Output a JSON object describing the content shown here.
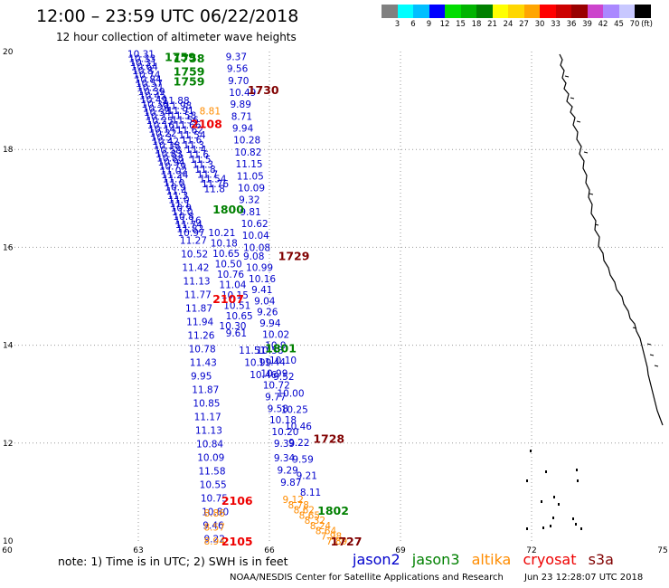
{
  "header": {
    "title": "12:00 – 23:59 UTC 06/22/2018",
    "subtitle": "12 hour collection of altimeter wave heights"
  },
  "legend": {
    "colors": [
      "#808080",
      "#00ffff",
      "#00bfff",
      "#0000ff",
      "#00dd00",
      "#00b400",
      "#008000",
      "#ffff00",
      "#ffd700",
      "#ffa500",
      "#ff0000",
      "#cc0000",
      "#990000",
      "#cc44cc",
      "#aa88ff",
      "#c8c8ff",
      "#000000"
    ],
    "labels": [
      "3",
      "6",
      "9",
      "12",
      "15",
      "18",
      "21",
      "24",
      "27",
      "30",
      "33",
      "36",
      "39",
      "42",
      "45",
      "70",
      "(ft)"
    ]
  },
  "map_data": {
    "lon_range": [
      60,
      75
    ],
    "lat_range": [
      10,
      20
    ],
    "lon_ticks": [
      "60",
      "63",
      "66",
      "69",
      "72",
      "75"
    ],
    "lat_ticks": [
      "20",
      "18",
      "16",
      "14",
      "12",
      "10"
    ],
    "track_colors": {
      "jason2": "#0000cc",
      "jason3": "#008000",
      "altika": "#ff8c00",
      "cryosat": "#ee0000",
      "s3a": "#800000"
    },
    "pass_times": [
      {
        "text": "1759",
        "lon": 63.6,
        "lat": 19.9,
        "sat": "jason3"
      },
      {
        "text": "1758",
        "lon": 63.8,
        "lat": 19.87,
        "sat": "jason3"
      },
      {
        "text": "1759",
        "lon": 63.8,
        "lat": 19.6,
        "sat": "jason3"
      },
      {
        "text": "1759",
        "lon": 63.8,
        "lat": 19.4,
        "sat": "jason3"
      },
      {
        "text": "1730",
        "lon": 65.5,
        "lat": 19.22,
        "sat": "s3a"
      },
      {
        "text": "2108",
        "lon": 64.2,
        "lat": 18.53,
        "sat": "cryosat"
      },
      {
        "text": "1800",
        "lon": 64.7,
        "lat": 16.78,
        "sat": "jason3"
      },
      {
        "text": "1729",
        "lon": 66.2,
        "lat": 15.83,
        "sat": "s3a"
      },
      {
        "text": "2107",
        "lon": 64.7,
        "lat": 14.95,
        "sat": "cryosat"
      },
      {
        "text": "1801",
        "lon": 65.9,
        "lat": 13.95,
        "sat": "jason3"
      },
      {
        "text": "1728",
        "lon": 67.0,
        "lat": 12.1,
        "sat": "s3a"
      },
      {
        "text": "2106",
        "lon": 64.9,
        "lat": 10.83,
        "sat": "cryosat"
      },
      {
        "text": "1802",
        "lon": 67.1,
        "lat": 10.63,
        "sat": "jason3"
      },
      {
        "text": "2105",
        "lon": 64.9,
        "lat": 10.0,
        "sat": "cryosat"
      },
      {
        "text": "1727",
        "lon": 67.4,
        "lat": 10.0,
        "sat": "s3a"
      }
    ],
    "tracks": [
      {
        "sat": "jason2",
        "lon_top": 62.75,
        "lat_top": 19.95,
        "lon_bot": 63.9,
        "lat_bot": 16.3,
        "values": [
          "10.31",
          "10.33",
          "10.31",
          "10.64",
          "10.8",
          "10.74",
          "10.84",
          "10.57",
          "10.21",
          "10.39",
          "10.45",
          "10.49",
          "10.36",
          "10.26",
          "10.34",
          "10.2",
          "10.25",
          "10.16",
          "10.14",
          "10.22",
          "10.3",
          "10.42",
          "10.38",
          "10.58",
          "10.83",
          "10.88",
          "10.94",
          "10.79",
          "11.02",
          "11.24",
          "11.1",
          "11.0",
          "10.9",
          "11.4",
          "11.3",
          "11.0",
          "11.1",
          "10.9",
          "11.0",
          "10.8",
          "11.16",
          "11.74",
          "11.82",
          "10.97"
        ]
      },
      {
        "sat": "jason2",
        "lon_top": 63.55,
        "lat_top": 19.0,
        "lon_bot": 64.5,
        "lat_bot": 17.2,
        "values": [
          "11.88",
          "11.98",
          "11.91",
          "11.58",
          "11.56",
          "11.66",
          "11.62",
          "11.54",
          "11.6",
          "11.3",
          "11.4",
          "11.6",
          "11.5",
          "11.3",
          "11.8",
          "11.7",
          "11.54",
          "11.76",
          "11.8"
        ]
      },
      {
        "sat": "jason2",
        "lon_top": 63.95,
        "lat_top": 16.15,
        "lon_bot": 64.5,
        "lat_bot": 10.05,
        "values": [
          "11.27",
          "10.52",
          "11.42",
          "11.13",
          "11.77",
          "11.87",
          "11.94",
          "11.26",
          "10.78",
          "11.43",
          "9.95",
          "11.87",
          "10.85",
          "11.17",
          "11.13",
          "10.84",
          "10.09",
          "11.58",
          "10.55",
          "10.75",
          "10.80",
          "9.46",
          "9.22"
        ]
      },
      {
        "sat": "jason2",
        "lon_top": 64.6,
        "lat_top": 16.3,
        "lon_bot": 65.0,
        "lat_bot": 14.6,
        "values": [
          "10.21",
          "10.18",
          "10.65",
          "10.50",
          "10.76",
          "11.04",
          "10.15",
          "10.51",
          "10.65"
        ]
      },
      {
        "sat": "jason2",
        "lon_top": 64.85,
        "lat_top": 14.4,
        "lon_bot": 65.0,
        "lat_bot": 14.25,
        "values": [
          "10.30",
          "9.61"
        ]
      },
      {
        "sat": "jason2",
        "lon_top": 65.0,
        "lat_top": 19.9,
        "lon_bot": 65.4,
        "lat_bot": 16.0,
        "values": [
          "9.37",
          "9.56",
          "9.70",
          "10.49",
          "9.89",
          "8.71",
          "9.94",
          "10.28",
          "10.82",
          "11.15",
          "11.05",
          "10.09",
          "9.32",
          "9.81",
          "10.62",
          "10.04",
          "10.08"
        ]
      },
      {
        "sat": "jason2",
        "lon_top": 65.4,
        "lat_top": 15.82,
        "lon_bot": 65.9,
        "lat_bot": 14.0,
        "values": [
          "9.08",
          "10.99",
          "10.16",
          "9.41",
          "9.04",
          "9.26",
          "9.94",
          "10.02",
          "10.9"
        ]
      },
      {
        "sat": "jason2",
        "lon_top": 65.3,
        "lat_top": 13.9,
        "lon_bot": 65.55,
        "lat_bot": 13.4,
        "values": [
          "11.51",
          "10.99",
          "10.46"
        ]
      },
      {
        "sat": "jason2",
        "lon_top": 65.7,
        "lat_top": 13.9,
        "lon_bot": 66.1,
        "lat_bot": 12.0,
        "values": [
          "10.58",
          "11.44",
          "10.99",
          "10.72",
          "9.77",
          "9.58",
          "10.18",
          "10.20",
          "9.39"
        ]
      },
      {
        "sat": "jason2",
        "lon_top": 66.0,
        "lat_top": 13.7,
        "lon_bot": 66.7,
        "lat_bot": 11.0,
        "values": [
          "10.10",
          "9.52",
          "10.00",
          "10.25",
          "10.46",
          "9.22",
          "9.59",
          "9.21",
          "8.11"
        ]
      },
      {
        "sat": "jason2",
        "lon_top": 66.1,
        "lat_top": 11.7,
        "lon_bot": 66.25,
        "lat_bot": 11.2,
        "values": [
          "9.34",
          "9.29",
          "9.87"
        ]
      },
      {
        "sat": "altika",
        "lon_top": 64.4,
        "lat_top": 18.79,
        "lon_bot": 64.4,
        "lat_bot": 18.79,
        "values": [
          "8.81"
        ]
      },
      {
        "sat": "altika",
        "lon_top": 64.5,
        "lat_top": 10.57,
        "lon_bot": 64.5,
        "lat_bot": 10.0,
        "values": [
          "8.86",
          "8.57",
          "8.94"
        ]
      },
      {
        "sat": "altika",
        "lon_top": 66.3,
        "lat_top": 10.85,
        "lon_bot": 67.3,
        "lat_bot": 10.0,
        "values": [
          "9.12",
          "8.78",
          "8.62",
          "8.65",
          "8.32",
          "8.24",
          "8.64",
          "7.98",
          "7.89"
        ]
      }
    ]
  },
  "footer": {
    "note": "note:  1) Time is in UTC;  2) SWH is in feet",
    "sat_names": {
      "jason2": "jason2",
      "jason3": "jason3",
      "altika": "altika",
      "cryosat": "cryosat",
      "s3a": "s3a"
    },
    "credit": "NOAA/NESDIS Center for Satellite Applications and Research",
    "timestamp": "Jun 23 12:28:07 UTC 2018"
  }
}
